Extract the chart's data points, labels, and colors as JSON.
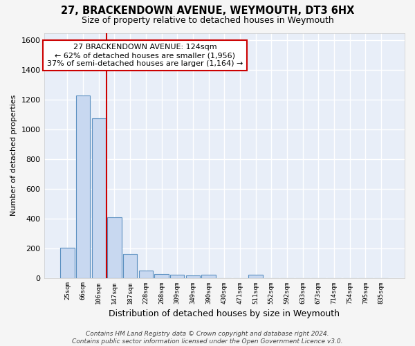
{
  "title1": "27, BRACKENDOWN AVENUE, WEYMOUTH, DT3 6HX",
  "title2": "Size of property relative to detached houses in Weymouth",
  "xlabel": "Distribution of detached houses by size in Weymouth",
  "ylabel": "Number of detached properties",
  "categories": [
    "25sqm",
    "66sqm",
    "106sqm",
    "147sqm",
    "187sqm",
    "228sqm",
    "268sqm",
    "309sqm",
    "349sqm",
    "390sqm",
    "430sqm",
    "471sqm",
    "511sqm",
    "552sqm",
    "592sqm",
    "633sqm",
    "673sqm",
    "714sqm",
    "754sqm",
    "795sqm",
    "835sqm"
  ],
  "values": [
    205,
    1230,
    1075,
    410,
    160,
    50,
    28,
    22,
    15,
    20,
    0,
    0,
    20,
    0,
    0,
    0,
    0,
    0,
    0,
    0,
    0
  ],
  "bar_color": "#c8d8f0",
  "bar_edge_color": "#5a8fc0",
  "red_line_x": 2.5,
  "annotation_line1": "27 BRACKENDOWN AVENUE: 124sqm",
  "annotation_line2": "← 62% of detached houses are smaller (1,956)",
  "annotation_line3": "37% of semi-detached houses are larger (1,164) →",
  "annotation_box_color": "#ffffff",
  "annotation_box_edge": "#cc0000",
  "bg_color": "#e8eef8",
  "grid_color": "#ffffff",
  "footer": "Contains HM Land Registry data © Crown copyright and database right 2024.\nContains public sector information licensed under the Open Government Licence v3.0.",
  "ylim": [
    0,
    1650
  ],
  "yticks": [
    0,
    200,
    400,
    600,
    800,
    1000,
    1200,
    1400,
    1600
  ]
}
